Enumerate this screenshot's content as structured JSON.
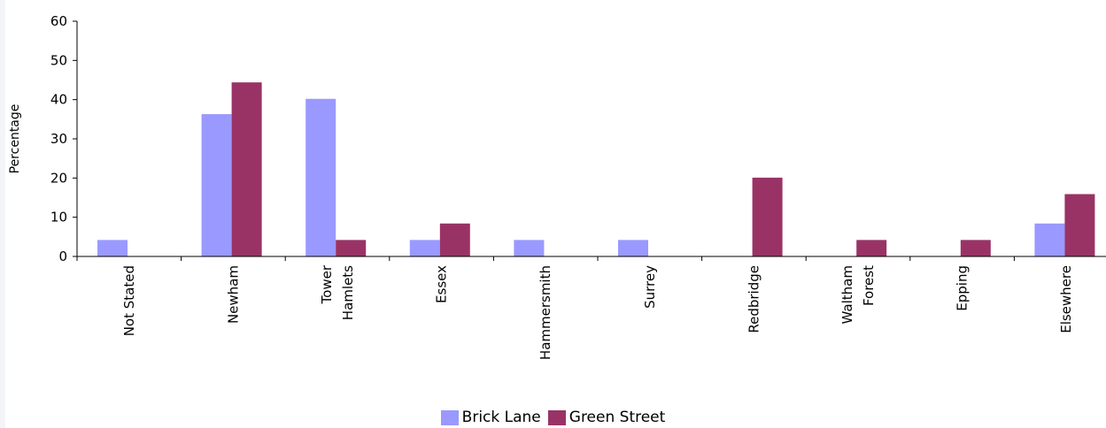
{
  "chart_data": {
    "type": "bar",
    "ylabel": "Percentage",
    "ylim": [
      0,
      60
    ],
    "yticks": [
      "0",
      "10",
      "20",
      "30",
      "40",
      "50",
      "60"
    ],
    "categories": [
      [
        "Not Stated"
      ],
      [
        "Newham"
      ],
      [
        "Tower",
        "Hamlets"
      ],
      [
        "Essex"
      ],
      [
        "Hammersmith"
      ],
      [
        "Surrey"
      ],
      [
        "Redbridge"
      ],
      [
        "Waltham",
        "Forest"
      ],
      [
        "Epping"
      ],
      [
        "Elsewhere"
      ]
    ],
    "series": [
      {
        "name": "Brick Lane",
        "color": "#9999ff",
        "values": [
          4.2,
          36.3,
          40.2,
          4.2,
          4.2,
          4.2,
          0,
          0,
          0,
          8.4
        ]
      },
      {
        "name": "Green Street",
        "color": "#993366",
        "values": [
          0,
          44.4,
          4.2,
          8.4,
          0,
          0,
          20.1,
          4.2,
          4.2,
          15.9
        ]
      }
    ],
    "legend_position": "bottom",
    "grid": false
  }
}
